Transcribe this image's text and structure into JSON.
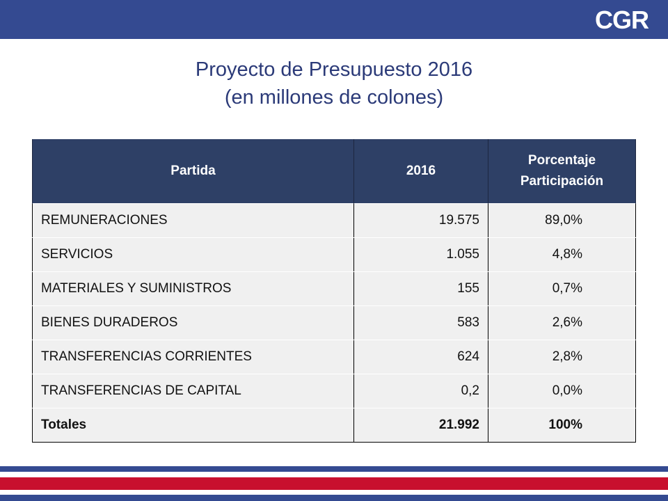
{
  "brand": {
    "logo_text": "CGR",
    "colors": {
      "blue": "#344a91",
      "red": "#c8102e",
      "header_dark": "#2e4066"
    }
  },
  "title": {
    "line1": "Proyecto de Presupuesto 2016",
    "line2": "(en millones de colones)"
  },
  "table": {
    "headers": {
      "partida": "Partida",
      "year": "2016",
      "pct_line1": "Porcentaje",
      "pct_line2": "Participación"
    },
    "rows": [
      {
        "partida": "REMUNERACIONES",
        "value": "19.575",
        "pct": "89,0%"
      },
      {
        "partida": "SERVICIOS",
        "value": "1.055",
        "pct": "4,8%"
      },
      {
        "partida": "MATERIALES Y SUMINISTROS",
        "value": "155",
        "pct": "0,7%"
      },
      {
        "partida": "BIENES DURADEROS",
        "value": "583",
        "pct": "2,6%"
      },
      {
        "partida": "TRANSFERENCIAS CORRIENTES",
        "value": "624",
        "pct": "2,8%"
      },
      {
        "partida": "TRANSFERENCIAS DE CAPITAL",
        "value": "0,2",
        "pct": "0,0%"
      }
    ],
    "total": {
      "partida": "Totales",
      "value": "21.992",
      "pct": "100%"
    }
  }
}
